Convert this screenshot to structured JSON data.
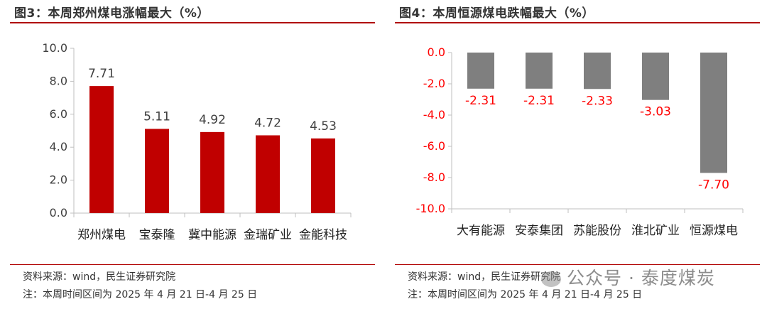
{
  "footer": {
    "source": "资料来源：wind，民生证券研究院",
    "note": "注：本周时间区间为 2025 年 4 月 21 日-4 月 25 日"
  },
  "watermark": {
    "text": "公众号 · 泰度煤炭"
  },
  "colors": {
    "bar_red": "#c00000",
    "bar_gray": "#7f7f7f",
    "label_neg": "#ff0000",
    "rule": "#b00000"
  },
  "chart_data": [
    {
      "type": "bar",
      "title": "图3：本周郑州煤电涨幅最大（%）",
      "categories": [
        "郑州煤电",
        "宝泰隆",
        "冀中能源",
        "金瑞矿业",
        "金能科技"
      ],
      "values": [
        7.71,
        5.11,
        4.92,
        4.72,
        4.53
      ],
      "data_labels": [
        "7.71",
        "5.11",
        "4.92",
        "4.72",
        "4.53"
      ],
      "ylim": [
        0,
        10
      ],
      "yticks": [
        "0.0",
        "2.0",
        "4.0",
        "6.0",
        "8.0",
        "10.0"
      ],
      "ytick_values": [
        0,
        2,
        4,
        6,
        8,
        10
      ],
      "grid": false,
      "xlabel": "",
      "ylabel": ""
    },
    {
      "type": "bar",
      "title": "图4：本周恒源煤电跌幅最大（%）",
      "categories": [
        "大有能源",
        "安泰集团",
        "苏能股份",
        "淮北矿业",
        "恒源煤电"
      ],
      "values": [
        -2.31,
        -2.31,
        -2.33,
        -3.03,
        -7.7
      ],
      "data_labels": [
        "-2.31",
        "-2.31",
        "-2.33",
        "-3.03",
        "-7.70"
      ],
      "ylim": [
        -10,
        0
      ],
      "yticks": [
        "0.0",
        "-2.0",
        "-4.0",
        "-6.0",
        "-8.0",
        "-10.0"
      ],
      "ytick_values": [
        0,
        -2,
        -4,
        -6,
        -8,
        -10
      ],
      "grid": false,
      "xlabel": "",
      "ylabel": ""
    }
  ]
}
